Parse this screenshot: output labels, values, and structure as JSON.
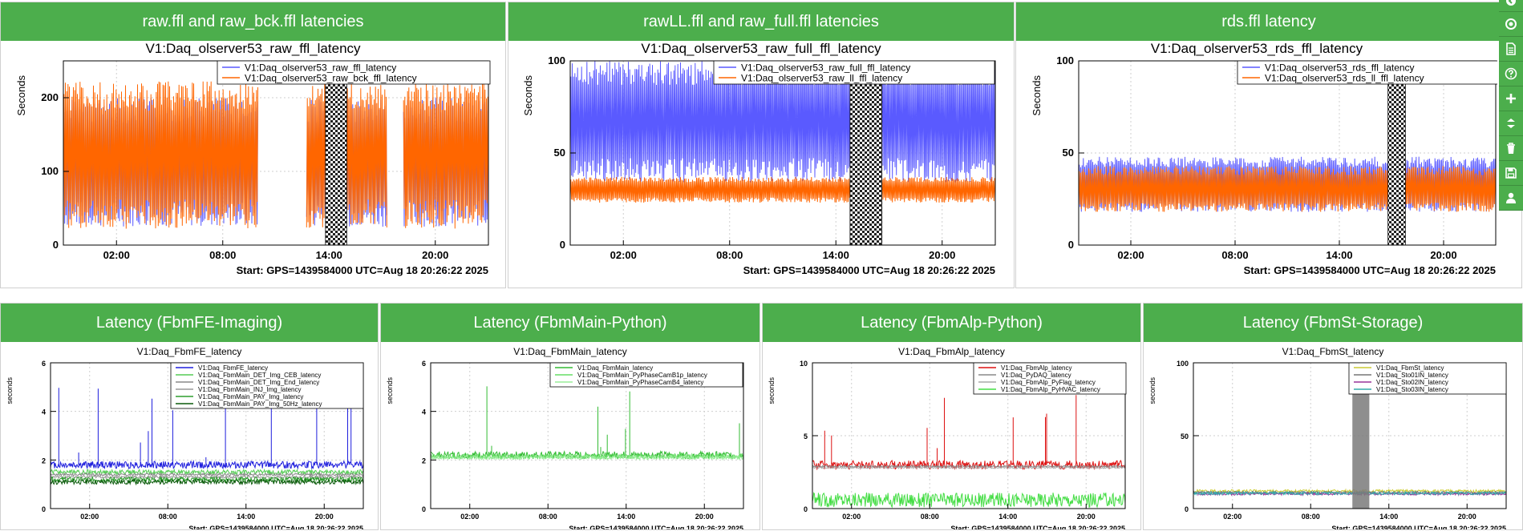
{
  "panels": [
    {
      "header": "raw.ffl and raw_bck.ffl latencies",
      "chart_data": {
        "type": "line",
        "title": "V1:Daq_olserver53_raw_ffl_latency",
        "ylabel": "Seconds",
        "xlabel": "Start: GPS=1439584000 UTC=Aug 18 20:26:22 2025",
        "ylim": [
          0,
          250
        ],
        "yticks": [
          0,
          100,
          200
        ],
        "xlim": [
          0,
          24
        ],
        "xticks": [
          {
            "v": 3,
            "label": "02:00"
          },
          {
            "v": 9,
            "label": "08:00"
          },
          {
            "v": 15,
            "label": "14:00"
          },
          {
            "v": 21,
            "label": "20:00"
          }
        ],
        "gaps": [
          [
            11,
            13.7
          ],
          [
            18.3,
            19.2
          ]
        ],
        "hatched": [
          [
            14.8,
            16.0
          ]
        ],
        "series": [
          {
            "name": "V1:Daq_olserver53_raw_ffl_latency",
            "color": "#5a5aff",
            "kind": "band",
            "low": 25,
            "high": 200,
            "from": 0,
            "to": 24
          },
          {
            "name": "V1:Daq_olserver53_raw_bck_ffl_latency",
            "color": "#ff6600",
            "kind": "band",
            "low": 22,
            "high": 222,
            "from": 0,
            "to": 24
          }
        ]
      }
    },
    {
      "header": "rawLL.ffl and raw_full.ffl latencies",
      "chart_data": {
        "type": "line",
        "title": "V1:Daq_olserver53_raw_full_ffl_latency",
        "ylabel": "Seconds",
        "xlabel": "Start: GPS=1439584000 UTC=Aug 18 20:26:22 2025",
        "ylim": [
          0,
          100
        ],
        "yticks": [
          0,
          50,
          100
        ],
        "xlim": [
          0,
          24
        ],
        "xticks": [
          {
            "v": 3,
            "label": "02:00"
          },
          {
            "v": 9,
            "label": "08:00"
          },
          {
            "v": 15,
            "label": "14:00"
          },
          {
            "v": 21,
            "label": "20:00"
          }
        ],
        "gaps": [],
        "hatched": [
          [
            15.8,
            17.6
          ]
        ],
        "series": [
          {
            "name": "V1:Daq_olserver53_raw_full_ffl_latency",
            "color": "#5a5aff",
            "kind": "band",
            "low": 34,
            "high": 100,
            "from": 0,
            "to": 24
          },
          {
            "name": "V1:Daq_olserver53_raw_ll_ffl_latency",
            "color": "#ff6600",
            "kind": "band",
            "low": 23,
            "high": 37,
            "from": 0,
            "to": 24
          }
        ]
      }
    },
    {
      "header": "rds.ffl latency",
      "chart_data": {
        "type": "line",
        "title": "V1:Daq_olserver53_rds_ffl_latency",
        "ylabel": "Seconds",
        "xlabel": "Start: GPS=1439584000 UTC=Aug 18 20:26:22 2025",
        "ylim": [
          0,
          100
        ],
        "yticks": [
          0,
          50,
          100
        ],
        "xlim": [
          0,
          24
        ],
        "xticks": [
          {
            "v": 3,
            "label": "02:00"
          },
          {
            "v": 9,
            "label": "08:00"
          },
          {
            "v": 15,
            "label": "14:00"
          },
          {
            "v": 21,
            "label": "20:00"
          }
        ],
        "gaps": [],
        "hatched": [
          [
            17.8,
            18.8
          ]
        ],
        "series": [
          {
            "name": "V1:Daq_olserver53_rds_ffl_latency",
            "color": "#5a5aff",
            "kind": "band",
            "low": 18,
            "high": 48,
            "from": 0,
            "to": 24
          },
          {
            "name": "V1:Daq_olserver53_rds_ll_ffl_latency",
            "color": "#ff6600",
            "kind": "band",
            "low": 18,
            "high": 43,
            "from": 0,
            "to": 24
          }
        ]
      }
    },
    {
      "header": "Latency (FbmFE-Imaging)",
      "chart_data": {
        "type": "line",
        "title": "V1:Daq_FbmFE_latency",
        "ylabel": "seconds",
        "xlabel": "Start: GPS=1439584000 UTC=Aug 18 20:26:22 2025",
        "ylim": [
          0,
          6
        ],
        "yticks": [
          0,
          2,
          4,
          6
        ],
        "xlim": [
          0,
          24
        ],
        "xticks": [
          {
            "v": 3,
            "label": "02:00"
          },
          {
            "v": 9,
            "label": "08:00"
          },
          {
            "v": 15,
            "label": "14:00"
          },
          {
            "v": 21,
            "label": "20:00"
          }
        ],
        "gaps": [],
        "hatched": [],
        "series": [
          {
            "name": "V1:Daq_FbmFE_latency",
            "color": "#1f1fdd",
            "kind": "noise",
            "level": 1.8,
            "spread": 0.15,
            "spikes": 14,
            "spikemax": 5.5
          },
          {
            "name": "V1:Daq_FbmMain_DET_Img_CEB_latency",
            "color": "#55cc55",
            "kind": "noise",
            "level": 1.5,
            "spread": 0.1
          },
          {
            "name": "V1:Daq_FbmMain_DET_Img_End_latency",
            "color": "#888888",
            "kind": "noise",
            "level": 1.4,
            "spread": 0.05
          },
          {
            "name": "V1:Daq_FbmMain_INJ_Img_latency",
            "color": "#999999",
            "kind": "noise",
            "level": 1.3,
            "spread": 0.05
          },
          {
            "name": "V1:Daq_FbmMain_PAY_Img_latency",
            "color": "#2e9e2e",
            "kind": "noise",
            "level": 1.2,
            "spread": 0.1
          },
          {
            "name": "V1:Daq_FbmMain_PAY_Img_50Hz_latency",
            "color": "#0a5a0a",
            "kind": "noise",
            "level": 1.1,
            "spread": 0.1
          }
        ]
      }
    },
    {
      "header": "Latency (FbmMain-Python)",
      "chart_data": {
        "type": "line",
        "title": "V1:Daq_FbmMain_latency",
        "ylabel": "seconds",
        "xlabel": "Start: GPS=1439584000 UTC=Aug 18 20:26:22 2025",
        "ylim": [
          0,
          6
        ],
        "yticks": [
          0,
          2,
          4,
          6
        ],
        "xlim": [
          0,
          24
        ],
        "xticks": [
          {
            "v": 3,
            "label": "02:00"
          },
          {
            "v": 9,
            "label": "08:00"
          },
          {
            "v": 15,
            "label": "14:00"
          },
          {
            "v": 21,
            "label": "20:00"
          }
        ],
        "gaps": [],
        "hatched": [],
        "series": [
          {
            "name": "V1:Daq_FbmMain_latency",
            "color": "#33bb33",
            "kind": "noise",
            "level": 2.2,
            "spread": 0.15,
            "spikes": 8,
            "spikemax": 5.2
          },
          {
            "name": "V1:Daq_FbmMain_PyPhaseCamB1p_latency",
            "color": "#66dd66",
            "kind": "noise",
            "level": 2.15,
            "spread": 0.1
          },
          {
            "name": "V1:Daq_FbmMain_PyPhaseCamB4_latency",
            "color": "#99ee99",
            "kind": "noise",
            "level": 2.1,
            "spread": 0.08
          }
        ]
      }
    },
    {
      "header": "Latency (FbmAlp-Python)",
      "chart_data": {
        "type": "line",
        "title": "V1:Daq_FbmAlp_latency",
        "ylabel": "seconds",
        "xlabel": "Start: GPS=1439584000 UTC=Aug 18 20:26:22 2025",
        "ylim": [
          0,
          10
        ],
        "yticks": [
          0,
          5,
          10
        ],
        "xlim": [
          0,
          24
        ],
        "xticks": [
          {
            "v": 3,
            "label": "02:00"
          },
          {
            "v": 9,
            "label": "08:00"
          },
          {
            "v": 15,
            "label": "14:00"
          },
          {
            "v": 21,
            "label": "20:00"
          }
        ],
        "gaps": [],
        "hatched": [],
        "series": [
          {
            "name": "V1:Daq_FbmAlp_latency",
            "color": "#dd1111",
            "kind": "noise",
            "level": 3.0,
            "spread": 0.3,
            "spikes": 10,
            "spikemax": 8.5
          },
          {
            "name": "V1:Daq_PyDAQ_latency",
            "color": "#888888",
            "kind": "noise",
            "level": 2.9,
            "spread": 0.05
          },
          {
            "name": "V1:Daq_FbmAlp_PyFlag_latency",
            "color": "#aaaaaa",
            "kind": "noise",
            "level": 2.8,
            "spread": 0.05
          },
          {
            "name": "V1:Daq_FbmAlp_PyHVAC_latency",
            "color": "#44dd44",
            "kind": "noise",
            "level": 0.6,
            "spread": 0.5
          }
        ]
      }
    },
    {
      "header": "Latency (FbmSt-Storage)",
      "chart_data": {
        "type": "line",
        "title": "V1:Daq_FbmSt_latency",
        "ylabel": "seconds",
        "xlabel": "Start: GPS=1439584000 UTC=Aug 18 20:26:22 2025",
        "ylim": [
          0,
          100
        ],
        "yticks": [
          0,
          50,
          100
        ],
        "xlim": [
          0,
          24
        ],
        "xticks": [
          {
            "v": 3,
            "label": "02:00"
          },
          {
            "v": 9,
            "label": "08:00"
          },
          {
            "v": 15,
            "label": "14:00"
          },
          {
            "v": 21,
            "label": "20:00"
          }
        ],
        "gaps": [],
        "hatched": [],
        "shaded": [
          [
            12.2,
            13.5
          ]
        ],
        "series": [
          {
            "name": "V1:Daq_FbmSt_latency",
            "color": "#cccc33",
            "kind": "noise",
            "level": 12,
            "spread": 1.0
          },
          {
            "name": "V1:Daq_Sto01IN_latency",
            "color": "#777777",
            "kind": "noise",
            "level": 11,
            "spread": 0.8
          },
          {
            "name": "V1:Daq_Sto02IN_latency",
            "color": "#993399",
            "kind": "noise",
            "level": 10,
            "spread": 0.8
          },
          {
            "name": "V1:Daq_Sto03IN_latency",
            "color": "#33aaaa",
            "kind": "noise",
            "level": 10.5,
            "spread": 1.0
          }
        ]
      }
    }
  ],
  "toolbar": [
    {
      "icon": "back-icon"
    },
    {
      "icon": "target-icon"
    },
    {
      "icon": "document-icon"
    },
    {
      "icon": "help-icon"
    },
    {
      "icon": "plus-icon"
    },
    {
      "icon": "expand-vertical-icon"
    },
    {
      "icon": "trash-icon"
    },
    {
      "icon": "save-icon"
    },
    {
      "icon": "user-icon"
    }
  ]
}
